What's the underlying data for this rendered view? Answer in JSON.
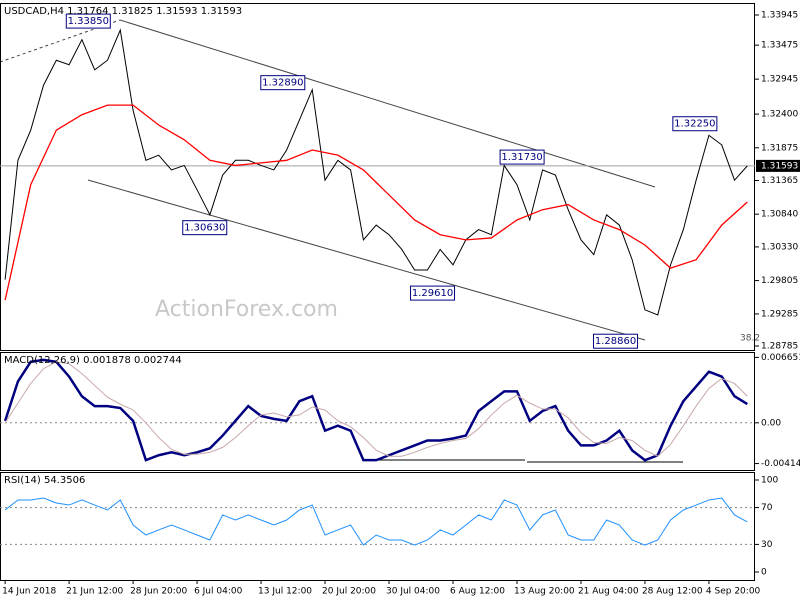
{
  "chart_data": [
    {
      "type": "line",
      "title": "USDCAD,H4  1.31764 1.31825 1.31593 1.31593",
      "watermark": "ActionForex.com",
      "fib_label": "38.2",
      "xlim": [
        -0.4,
        58.6
      ],
      "ylim": [
        1.28723,
        1.34132
      ],
      "yticks": [
        1.33945,
        1.33475,
        1.32945,
        {
          "value": 1.324,
          "label": "1.32400"
        },
        1.31875,
        1.31365,
        {
          "value": 1.3084,
          "label": "1.30840"
        },
        {
          "value": 1.3033,
          "label": "1.30330"
        },
        1.29805,
        1.29285,
        1.28785
      ],
      "last_price": {
        "value": 1.31593,
        "label": "1.31593"
      },
      "x": [
        0,
        1,
        2,
        3,
        4,
        5,
        6,
        7,
        8,
        9,
        10,
        11,
        12,
        13,
        14,
        15,
        16,
        17,
        18,
        19,
        20,
        21,
        22,
        23,
        24,
        25,
        26,
        27,
        28,
        29,
        30,
        31,
        32,
        33,
        34,
        35,
        36,
        37,
        38,
        39,
        40,
        41,
        42,
        43,
        44,
        45,
        46,
        47,
        48,
        49,
        50,
        51,
        52,
        53,
        54,
        55,
        56,
        57,
        58
      ],
      "series": [
        {
          "color": "#000000",
          "values": [
            1.2982,
            1.3168,
            1.3215,
            1.3285,
            1.3324,
            1.3317,
            1.3356,
            1.3309,
            1.3324,
            1.3371,
            1.3246,
            1.3168,
            1.3176,
            1.3153,
            1.316,
            1.3122,
            1.3083,
            1.3145,
            1.3168,
            1.3168,
            1.316,
            1.3153,
            1.3184,
            1.3231,
            1.3278,
            1.3137,
            1.3168,
            1.3153,
            1.3044,
            1.3067,
            1.3052,
            1.3029,
            1.2997,
            1.2997,
            1.3029,
            1.3005,
            1.3044,
            1.306,
            1.3052,
            1.316,
            1.313,
            1.3075,
            1.3153,
            1.3145,
            1.3091,
            1.3044,
            1.3021,
            1.3083,
            1.3067,
            1.3013,
            1.2935,
            1.2927,
            1.3005,
            1.306,
            1.3137,
            1.3207,
            1.3192,
            1.3137,
            1.31593
          ]
        },
        {
          "color": "#ff0000",
          "x": [
            0,
            2,
            4,
            6,
            8,
            10,
            12,
            14,
            16,
            18,
            20,
            22,
            24,
            26,
            28,
            30,
            32,
            34,
            36,
            38,
            40,
            42,
            44,
            46,
            48,
            50,
            52,
            54,
            56,
            58
          ],
          "values": [
            1.295,
            1.313,
            1.3215,
            1.3239,
            1.3254,
            1.3254,
            1.3223,
            1.32,
            1.3168,
            1.316,
            1.3164,
            1.3168,
            1.3184,
            1.3176,
            1.3153,
            1.3114,
            1.3075,
            1.3052,
            1.3044,
            1.3047,
            1.3075,
            1.3091,
            1.3099,
            1.3075,
            1.306,
            1.3036,
            1.3,
            1.3013,
            1.3067,
            1.3103
          ]
        }
      ],
      "annotations": [
        {
          "value": 1.3385,
          "label": "1.33850",
          "x": 6.5
        },
        {
          "value": 1.3289,
          "label": "1.32890",
          "x": 21.7
        },
        {
          "value": 1.3063,
          "label": "1.30630",
          "x": 15.6
        },
        {
          "value": 1.3173,
          "label": "1.31730",
          "x": 40.4
        },
        {
          "value": 1.2961,
          "label": "1.29610",
          "x": 33.4
        },
        {
          "value": 1.2886,
          "label": "1.28860",
          "x": 47.7
        },
        {
          "value": 1.3225,
          "label": "1.32250",
          "x": 53.9
        }
      ]
    },
    {
      "type": "line",
      "title": "MACD(12,26,9) 0.001878 0.002744",
      "xlim": [
        -0.4,
        58.6
      ],
      "ylim": [
        -0.0048,
        0.0072
      ],
      "yticks": [
        0.006651,
        {
          "value": 0,
          "label": "0.00"
        },
        -0.004145
      ],
      "levels": [
        0
      ],
      "x": [
        0,
        1,
        2,
        3,
        4,
        5,
        6,
        7,
        8,
        9,
        10,
        11,
        12,
        13,
        14,
        15,
        16,
        17,
        18,
        19,
        20,
        21,
        22,
        23,
        24,
        25,
        26,
        27,
        28,
        29,
        30,
        31,
        32,
        33,
        34,
        35,
        36,
        37,
        38,
        39,
        40,
        41,
        42,
        43,
        44,
        45,
        46,
        47,
        48,
        49,
        50,
        51,
        52,
        53,
        54,
        55,
        56,
        57,
        58
      ],
      "series": [
        {
          "color": "#000080",
          "values": [
            0.0002,
            0.0042,
            0.0062,
            0.0064,
            0.0062,
            0.0047,
            0.0027,
            0.0017,
            0.0017,
            0.0015,
            0.0002,
            -0.0038,
            -0.0033,
            -0.003,
            -0.0033,
            -0.003,
            -0.0026,
            -0.0013,
            0.0002,
            0.0017,
            0.0007,
            0.0004,
            0.0002,
            0.0022,
            0.0027,
            -0.0008,
            -0.0003,
            -0.0008,
            -0.0038,
            -0.0038,
            -0.0033,
            -0.0028,
            -0.0023,
            -0.0018,
            -0.0018,
            -0.0016,
            -0.0013,
            0.0012,
            0.0022,
            0.0032,
            0.0032,
            0.0002,
            0.0012,
            0.0017,
            -0.0008,
            -0.0023,
            -0.0023,
            -0.0018,
            -0.0008,
            -0.0028,
            -0.0038,
            -0.0033,
            -0.0003,
            0.0022,
            0.0037,
            0.0052,
            0.0047,
            0.0027,
            0.0019
          ]
        },
        {
          "color": "#c8a8a8",
          "values": [
            0.0,
            0.002,
            0.004,
            0.0055,
            0.0062,
            0.006,
            0.005,
            0.0038,
            0.0026,
            0.0019,
            0.0013,
            0.0,
            -0.0015,
            -0.0027,
            -0.0032,
            -0.0032,
            -0.003,
            -0.0025,
            -0.0015,
            -0.0003,
            0.0008,
            0.001,
            0.0006,
            0.0008,
            0.0016,
            0.0013,
            0.0002,
            -0.0004,
            -0.0015,
            -0.0028,
            -0.0034,
            -0.0034,
            -0.003,
            -0.0025,
            -0.0021,
            -0.0018,
            -0.0016,
            -0.0006,
            0.0008,
            0.002,
            0.0028,
            0.002,
            0.0014,
            0.0014,
            0.0005,
            -0.001,
            -0.002,
            -0.0021,
            -0.0015,
            -0.0018,
            -0.0028,
            -0.0034,
            -0.0022,
            -0.0003,
            0.0017,
            0.0035,
            0.0045,
            0.004,
            0.0027
          ]
        }
      ]
    },
    {
      "type": "line",
      "title": "RSI(14) 54.3506",
      "xlim": [
        -0.4,
        58.6
      ],
      "ylim": [
        -8.7,
        108.7
      ],
      "yticks": [
        100,
        70,
        30,
        0
      ],
      "levels": [
        70,
        30
      ],
      "xticks": [
        {
          "value": 0,
          "label": "14 Jun 2018"
        },
        {
          "value": 5,
          "label": "21 Jun 12:00"
        },
        {
          "value": 10,
          "label": "28 Jun 20:00"
        },
        {
          "value": 15,
          "label": "6 Jul 04:00"
        },
        {
          "value": 20,
          "label": "13 Jul 12:00"
        },
        {
          "value": 25,
          "label": "20 Jul 20:00"
        },
        {
          "value": 30,
          "label": "30 Jul 04:00"
        },
        {
          "value": 35,
          "label": "6 Aug 12:00"
        },
        {
          "value": 40,
          "label": "13 Aug 20:00"
        },
        {
          "value": 45,
          "label": "21 Aug 04:00"
        },
        {
          "value": 50,
          "label": "28 Aug 12:00"
        },
        {
          "value": 55,
          "label": "4 Sep 20:00"
        }
      ],
      "x": [
        0,
        1,
        2,
        3,
        4,
        5,
        6,
        7,
        8,
        9,
        10,
        11,
        12,
        13,
        14,
        15,
        16,
        17,
        18,
        19,
        20,
        21,
        22,
        23,
        24,
        25,
        26,
        27,
        28,
        29,
        30,
        31,
        32,
        33,
        34,
        35,
        36,
        37,
        38,
        39,
        40,
        41,
        42,
        43,
        44,
        45,
        46,
        47,
        48,
        49,
        50,
        51,
        52,
        53,
        54,
        55,
        56,
        57,
        58
      ],
      "series": [
        {
          "color": "#1e90ff",
          "values": [
            67.4,
            78.3,
            78.3,
            80.4,
            75.0,
            72.8,
            78.3,
            72.8,
            67.4,
            78.3,
            51.1,
            40.2,
            45.7,
            51.1,
            45.7,
            40.2,
            34.8,
            62.0,
            56.5,
            62.0,
            56.5,
            51.1,
            56.5,
            67.4,
            72.8,
            40.2,
            45.7,
            51.1,
            29.3,
            40.2,
            34.8,
            34.8,
            29.3,
            34.8,
            45.7,
            40.2,
            51.1,
            62.0,
            56.5,
            78.3,
            72.8,
            45.7,
            62.0,
            67.4,
            40.2,
            34.8,
            34.8,
            56.5,
            51.1,
            34.8,
            29.3,
            34.8,
            56.5,
            67.4,
            72.8,
            78.3,
            80.4,
            62.0,
            54.4
          ]
        }
      ]
    }
  ]
}
